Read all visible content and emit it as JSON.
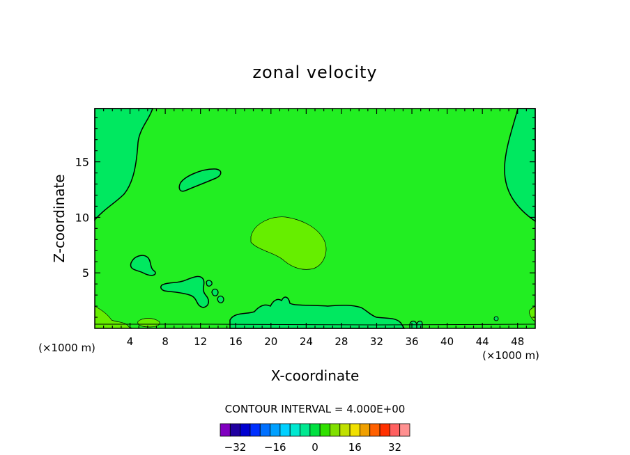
{
  "chart_data": {
    "type": "contour",
    "title": "zonal velocity",
    "xlabel": "X-coordinate",
    "ylabel": "Z-coordinate",
    "x_unit_label": "(×1000 m)",
    "y_unit_label": "(×1000 m)",
    "xlim": [
      0,
      50
    ],
    "ylim": [
      0,
      19.8
    ],
    "x_ticks": [
      4,
      8,
      12,
      16,
      20,
      24,
      28,
      32,
      36,
      40,
      44,
      48
    ],
    "y_ticks": [
      5,
      10,
      15
    ],
    "contour_interval_label": "CONTOUR INTERVAL = 4.000E+00",
    "colorbar": {
      "levels": [
        -34,
        -30,
        -26,
        -22,
        -18,
        -14,
        -10,
        -6,
        -2,
        2,
        6,
        10,
        14,
        18,
        22,
        26,
        30,
        34
      ],
      "tick_labels": [
        -32,
        -16,
        0,
        16,
        32
      ],
      "colors": [
        "#8000c0",
        "#2000a0",
        "#0000d0",
        "#0030ff",
        "#0070ff",
        "#00a0ff",
        "#00d0ff",
        "#00e8d0",
        "#00e890",
        "#00e040",
        "#30e000",
        "#80e000",
        "#c0e000",
        "#f0e000",
        "#f0a000",
        "#ff6000",
        "#ff3000",
        "#ff6060",
        "#ff9090"
      ]
    },
    "background_color": "#22ee22",
    "regions": [
      {
        "name": "upper-left-lobe",
        "value_range": "-4 to 0",
        "color": "#00e860"
      },
      {
        "name": "upper-right-lobe",
        "value_range": "-4 to 0",
        "color": "#00e860"
      },
      {
        "name": "mid-level-ellipse",
        "value_range": "-4 to 0",
        "color": "#00e860"
      },
      {
        "name": "center-positive-blob",
        "value_range": "4 to 8",
        "color": "#66ee00"
      },
      {
        "name": "lower-cells",
        "value_range": "-4 to 0",
        "color": "#00e860"
      }
    ]
  }
}
